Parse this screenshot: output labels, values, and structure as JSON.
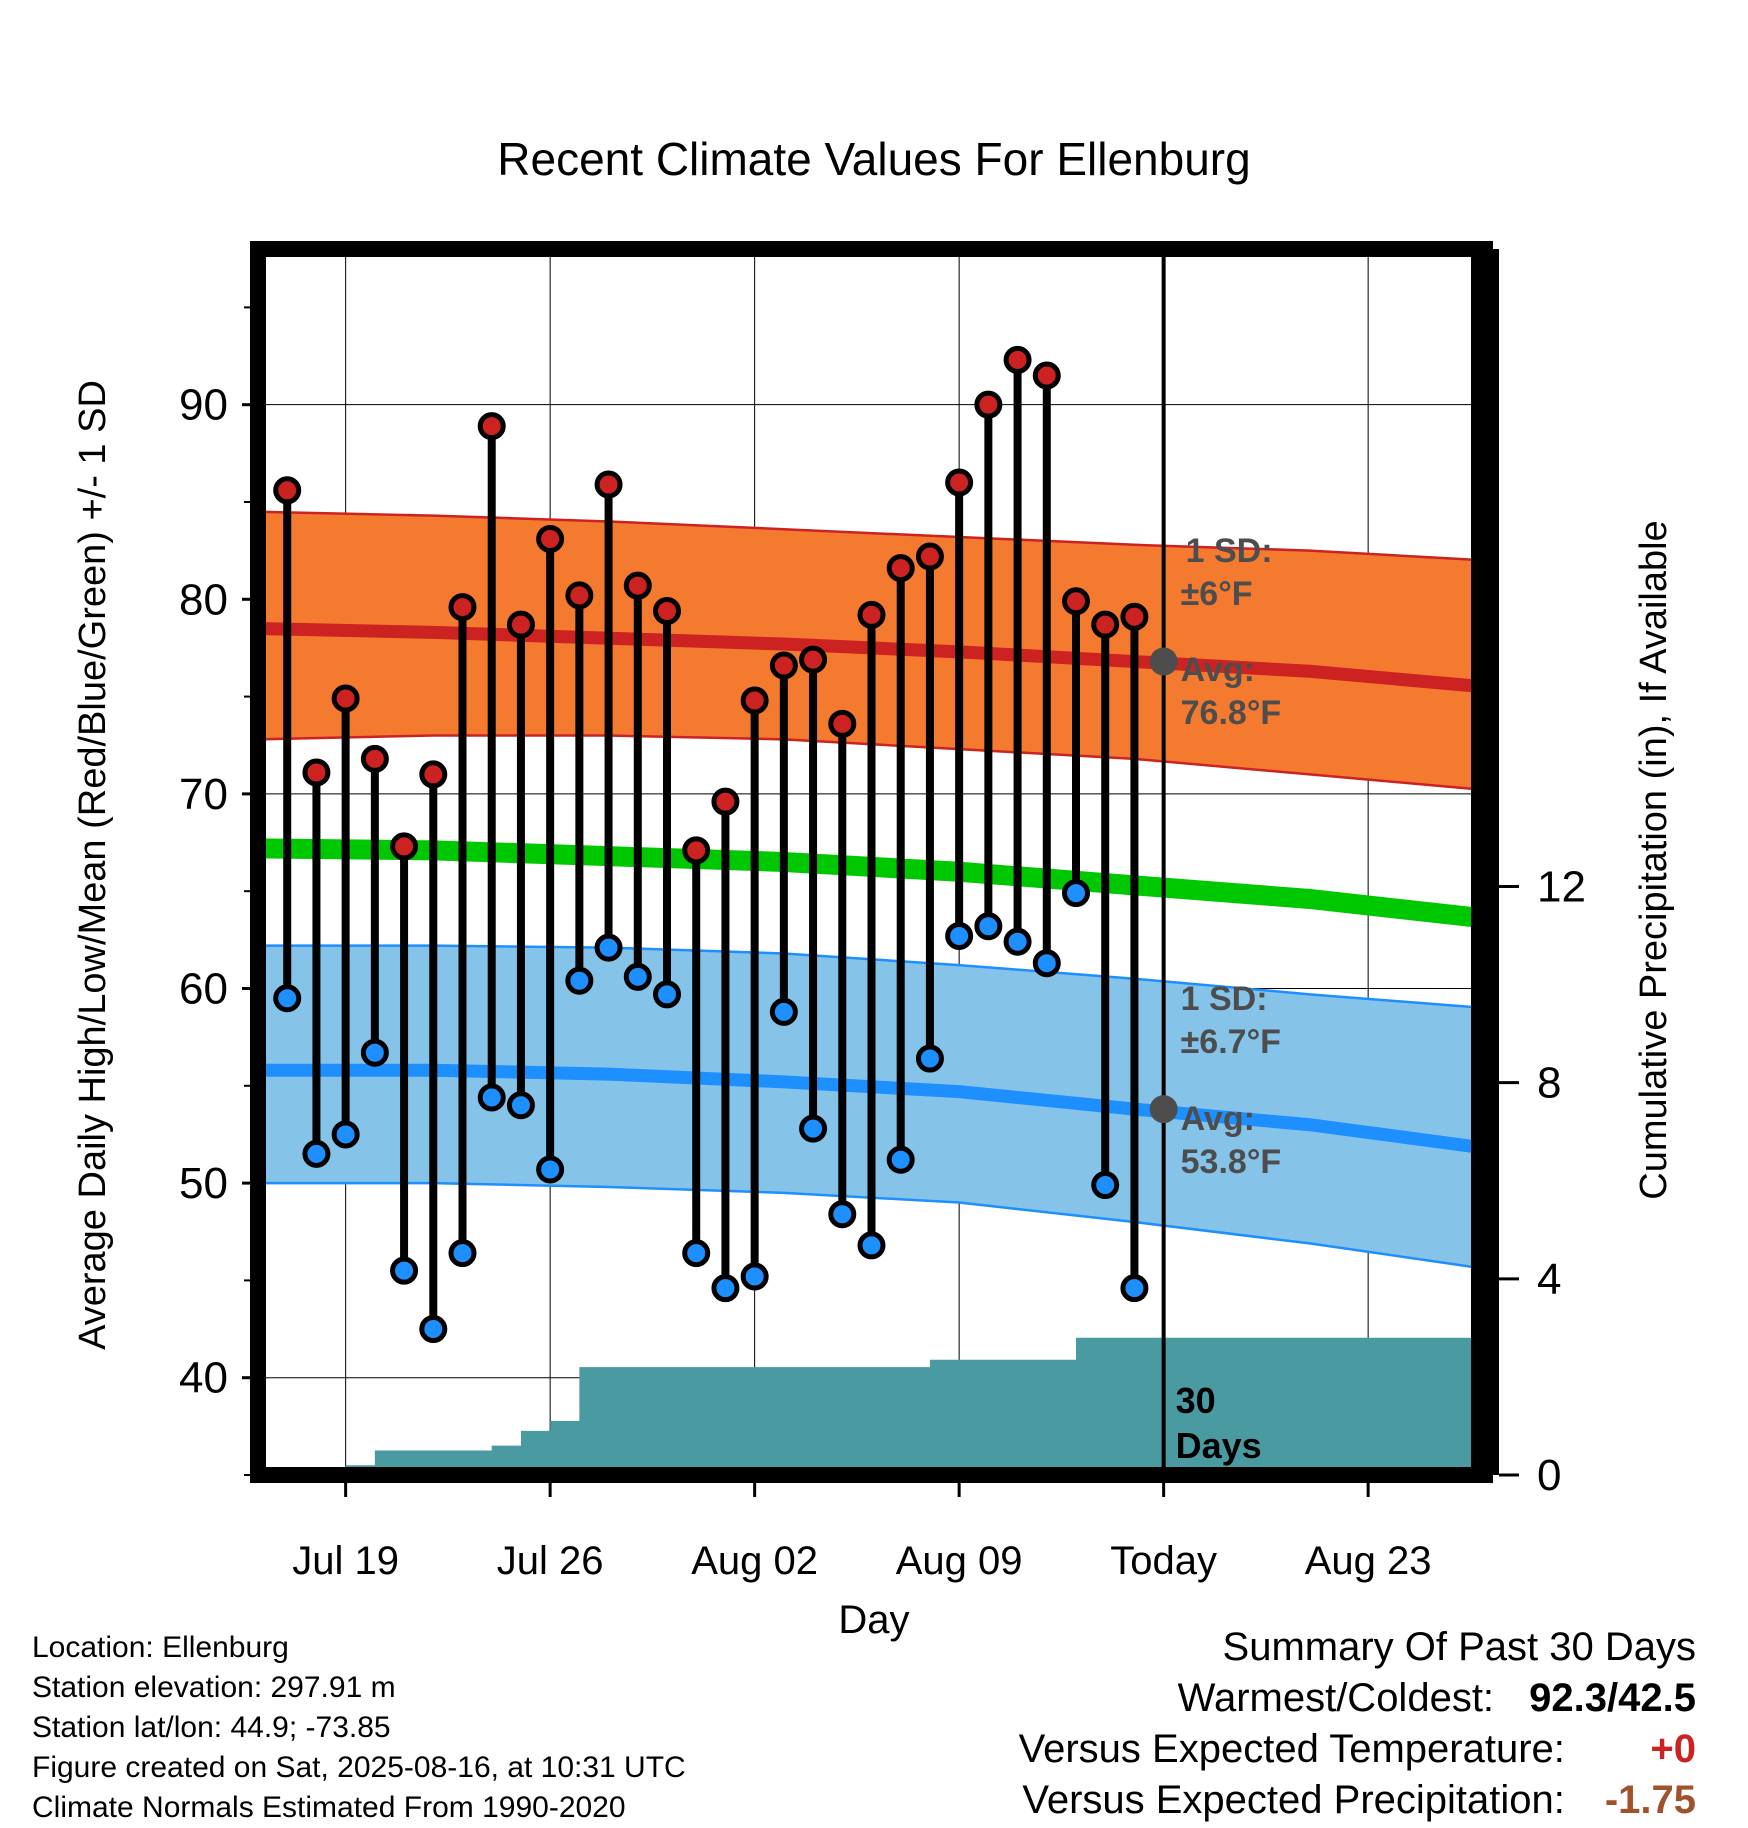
{
  "chart_data": {
    "type": "line",
    "title": "Recent Climate Values For Ellenburg",
    "xlabel": "Day",
    "ylabel_left": "Average Daily High/Low/Mean (Red/Blue/Green) +/- 1 SD",
    "ylabel_right": "Cumulative Precipitation (in), If Available",
    "ylim_left": [
      35,
      98
    ],
    "ylim_right": [
      0,
      25
    ],
    "xlim": [
      0,
      42
    ],
    "x_ticks": [
      {
        "x": 3,
        "label": "Jul 19"
      },
      {
        "x": 10,
        "label": "Jul 26"
      },
      {
        "x": 17,
        "label": "Aug 02"
      },
      {
        "x": 24,
        "label": "Aug 09"
      },
      {
        "x": 31,
        "label": "Today"
      },
      {
        "x": 38,
        "label": "Aug 23"
      }
    ],
    "y_ticks_left": [
      40,
      50,
      60,
      70,
      80,
      90
    ],
    "y_ticks_right": [
      0,
      4,
      8,
      12
    ],
    "x_days": [
      1,
      2,
      3,
      4,
      5,
      6,
      7,
      8,
      9,
      10,
      11,
      12,
      13,
      14,
      15,
      16,
      17,
      18,
      19,
      20,
      21,
      22,
      23,
      24,
      25,
      26,
      27,
      28,
      29,
      30
    ],
    "series": [
      {
        "name": "Daily High",
        "color": "#cc2222",
        "values": [
          85.6,
          71.1,
          74.9,
          71.8,
          67.3,
          71.0,
          79.6,
          88.9,
          78.7,
          83.1,
          80.2,
          85.9,
          80.7,
          79.4,
          67.1,
          69.6,
          74.8,
          76.6,
          76.9,
          73.6,
          79.2,
          81.6,
          82.2,
          86.0,
          90.0,
          92.3,
          91.5,
          79.9,
          78.7,
          79.1
        ]
      },
      {
        "name": "Daily Low",
        "color": "#1e8fff",
        "values": [
          59.5,
          51.5,
          52.5,
          56.7,
          45.5,
          42.5,
          46.4,
          54.4,
          54.0,
          50.7,
          60.4,
          62.1,
          60.6,
          59.7,
          46.4,
          44.6,
          45.2,
          58.8,
          52.8,
          48.4,
          46.8,
          51.2,
          56.4,
          62.7,
          63.2,
          62.4,
          61.3,
          64.9,
          49.9,
          44.6
        ]
      }
    ],
    "normal_high": {
      "x": [
        0,
        6,
        12,
        18,
        24,
        30,
        36,
        42
      ],
      "avg": [
        78.5,
        78.3,
        78.0,
        77.7,
        77.3,
        76.8,
        76.3,
        75.5
      ],
      "upper": [
        84.5,
        84.3,
        84.0,
        83.6,
        83.2,
        82.8,
        82.5,
        82.0
      ],
      "lower": [
        72.8,
        73.0,
        73.0,
        72.8,
        72.3,
        71.8,
        71.0,
        70.2
      ]
    },
    "normal_mean": {
      "x": [
        0,
        6,
        12,
        18,
        24,
        30,
        36,
        42
      ],
      "values": [
        67.2,
        67.1,
        66.8,
        66.5,
        66.0,
        65.3,
        64.6,
        63.6
      ]
    },
    "normal_low": {
      "x": [
        0,
        6,
        12,
        18,
        24,
        30,
        36,
        42
      ],
      "avg": [
        55.8,
        55.8,
        55.6,
        55.2,
        54.7,
        53.8,
        53.0,
        51.8
      ],
      "upper": [
        62.2,
        62.2,
        62.1,
        61.8,
        61.2,
        60.5,
        59.7,
        59.0
      ],
      "lower": [
        50.0,
        50.0,
        49.8,
        49.5,
        49.0,
        48.0,
        46.9,
        45.6
      ]
    },
    "precipitation": {
      "x": [
        0,
        1,
        1,
        3,
        3,
        4,
        4,
        8,
        8,
        9,
        9,
        10,
        10,
        11,
        11,
        22,
        22,
        23,
        23,
        27,
        27,
        28,
        28,
        42
      ],
      "values": [
        0,
        0,
        0.1,
        0.1,
        0.2,
        0.2,
        0.5,
        0.5,
        0.6,
        0.6,
        0.9,
        0.9,
        1.1,
        1.1,
        2.2,
        2.2,
        2.2,
        2.2,
        2.35,
        2.35,
        2.35,
        2.35,
        2.8,
        2.8
      ],
      "color": "#4a9aa2"
    },
    "annotations": {
      "high_sd_label": "1 SD:",
      "high_sd_value": "±6°F",
      "high_avg_label": "Avg:",
      "high_avg_value": "76.8°F",
      "low_sd_label": "1 SD:",
      "low_sd_value": "±6.7°F",
      "low_avg_label": "Avg:",
      "low_avg_value": "53.8°F",
      "days_number": "30",
      "days_word": "Days"
    },
    "colors": {
      "high_band": "#f47a30",
      "high_line": "#cc2222",
      "low_band": "#86c3e8",
      "low_line": "#1e8fff",
      "mean_line": "#00c800",
      "precip": "#4a9aa2"
    }
  },
  "footer": {
    "location": "Location: Ellenburg",
    "elevation": "Station elevation: 297.91 m",
    "latlon": "Station lat/lon: 44.9; -73.85",
    "created": "Figure created on Sat, 2025-08-16, at 10:31 UTC",
    "normals": "Climate Normals Estimated From 1990-2020"
  },
  "summary": {
    "title": "Summary Of Past 30 Days",
    "warmest_label": "Warmest/Coldest:",
    "warmest_value": "92.3/42.5",
    "temp_label": "Versus Expected Temperature:",
    "temp_value": "+0",
    "temp_color": "#cc2222",
    "precip_label": "Versus Expected Precipitation:",
    "precip_value": "-1.75",
    "precip_color": "#a0522d"
  }
}
